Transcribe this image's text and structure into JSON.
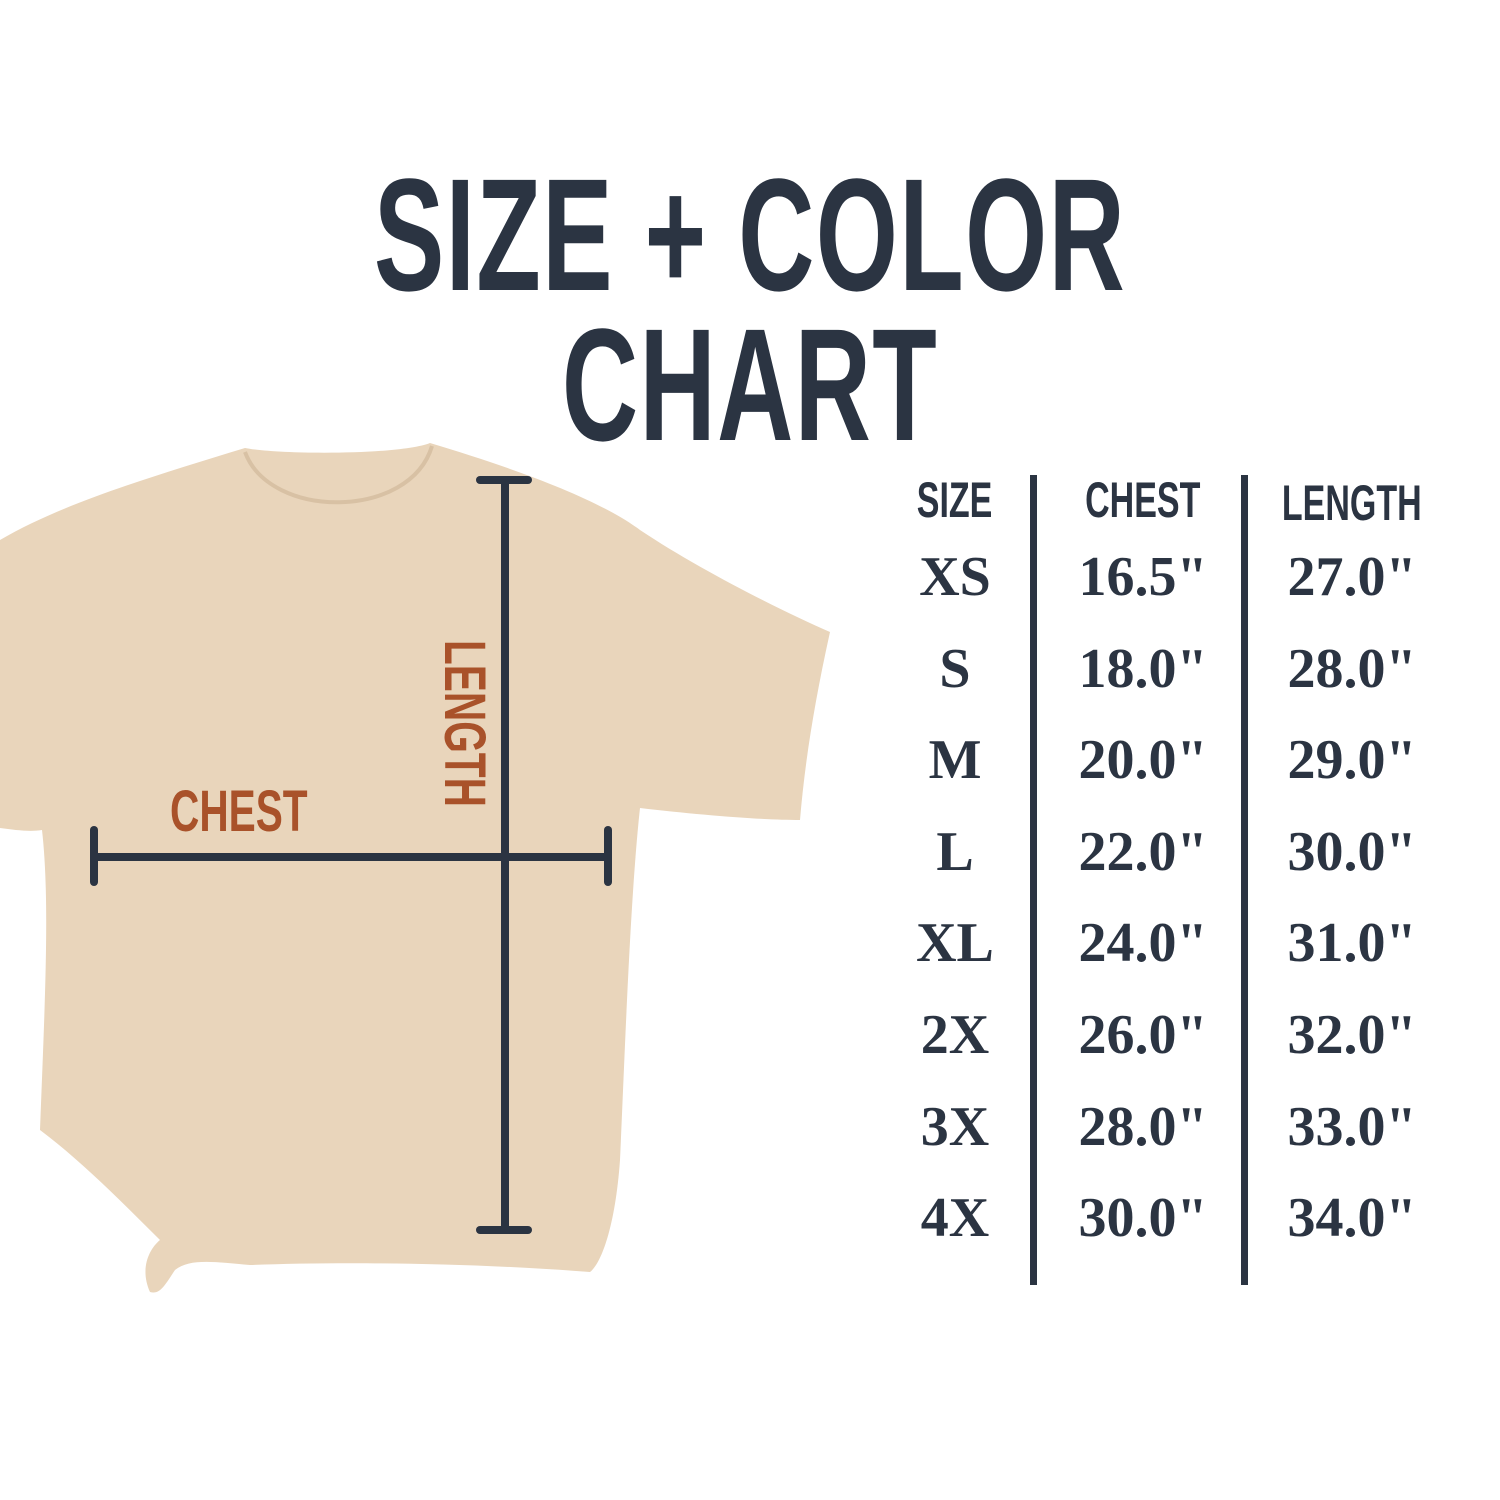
{
  "title": "SIZE + COLOR CHART",
  "diagram": {
    "chest_label": "CHEST",
    "length_label": "LENGTH"
  },
  "colors": {
    "text": "#2b3442",
    "accent": "#a9522a",
    "shirt": "#e9d5bb"
  },
  "table": {
    "headers": [
      "SIZE",
      "CHEST",
      "LENGTH"
    ],
    "rows": [
      [
        "XS",
        "16.5\"",
        "27.0\""
      ],
      [
        "S",
        "18.0\"",
        "28.0\""
      ],
      [
        "M",
        "20.0\"",
        "29.0\""
      ],
      [
        "L",
        "22.0\"",
        "30.0\""
      ],
      [
        "XL",
        "24.0\"",
        "31.0\""
      ],
      [
        "2X",
        "26.0\"",
        "32.0\""
      ],
      [
        "3X",
        "28.0\"",
        "33.0\""
      ],
      [
        "4X",
        "30.0\"",
        "34.0\""
      ]
    ]
  }
}
